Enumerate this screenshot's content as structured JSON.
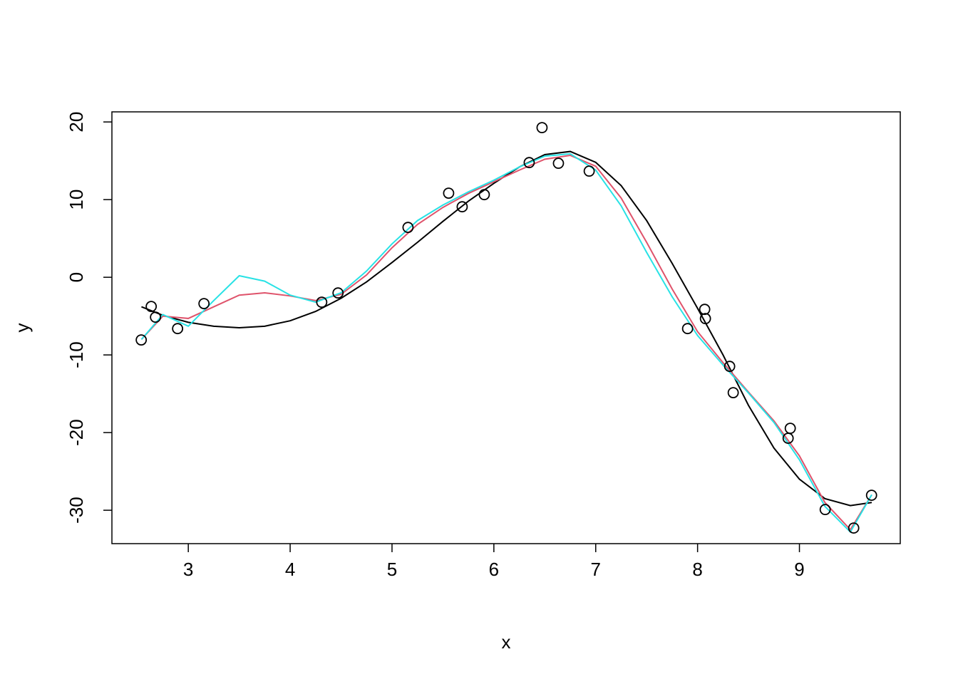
{
  "chart_data": {
    "type": "scatter",
    "x_label": "x",
    "y_label": "y",
    "xlim": [
      2.25,
      9.99
    ],
    "ylim": [
      -34.3,
      21.3
    ],
    "xticks": [
      3,
      4,
      5,
      6,
      7,
      8,
      9
    ],
    "yticks": [
      -30,
      -20,
      -10,
      0,
      10,
      20
    ],
    "points": {
      "color": "#000000",
      "x": [
        2.538,
        2.636,
        2.678,
        2.895,
        3.154,
        4.31,
        4.47,
        5.157,
        5.556,
        5.689,
        5.906,
        6.347,
        6.473,
        6.634,
        6.936,
        7.902,
        8.07,
        8.077,
        8.315,
        8.35,
        8.889,
        8.91,
        9.253,
        9.533,
        9.708
      ],
      "y": [
        -8.07,
        -3.76,
        -5.14,
        -6.61,
        -3.39,
        -3.21,
        -2.02,
        6.42,
        10.83,
        9.08,
        10.64,
        14.77,
        19.27,
        14.68,
        13.67,
        -6.61,
        -4.13,
        -5.32,
        -11.47,
        -14.86,
        -20.73,
        -19.45,
        -29.91,
        -32.29,
        -28.07
      ]
    },
    "curve_x": [
      2.54,
      2.75,
      3.0,
      3.25,
      3.5,
      3.75,
      4.0,
      4.25,
      4.5,
      4.75,
      5.0,
      5.25,
      5.5,
      5.75,
      6.0,
      6.25,
      6.5,
      6.75,
      7.0,
      7.25,
      7.5,
      7.75,
      8.0,
      8.25,
      8.5,
      8.75,
      9.0,
      9.25,
      9.5,
      9.71
    ],
    "series": [
      {
        "color": "#000000",
        "values": [
          -3.8,
          -4.9,
          -5.8,
          -6.3,
          -6.5,
          -6.3,
          -5.6,
          -4.4,
          -2.7,
          -0.6,
          1.9,
          4.5,
          7.2,
          9.8,
          12.1,
          14.2,
          15.8,
          16.2,
          14.8,
          11.8,
          7.3,
          1.8,
          -4.0,
          -10.0,
          -16.5,
          -22.0,
          -26.0,
          -28.5,
          -29.4,
          -29.0
        ]
      },
      {
        "color": "#DF536B",
        "values": [
          -8.0,
          -5.0,
          -5.3,
          -3.8,
          -2.3,
          -2.0,
          -2.4,
          -3.0,
          -2.2,
          0.3,
          3.8,
          6.8,
          9.0,
          10.8,
          12.3,
          13.8,
          15.2,
          15.7,
          14.3,
          10.2,
          4.5,
          -1.5,
          -7.0,
          -11.0,
          -14.8,
          -18.5,
          -23.0,
          -29.0,
          -32.5,
          -28.0
        ]
      },
      {
        "color": "#28E2E5",
        "values": [
          -8.0,
          -4.8,
          -6.3,
          -3.0,
          0.2,
          -0.5,
          -2.3,
          -3.2,
          -2.0,
          0.8,
          4.3,
          7.3,
          9.3,
          11.0,
          12.5,
          14.2,
          15.6,
          15.9,
          13.8,
          9.2,
          3.2,
          -2.5,
          -7.5,
          -11.3,
          -14.9,
          -18.7,
          -23.5,
          -29.5,
          -32.8,
          -28.0
        ]
      }
    ]
  }
}
